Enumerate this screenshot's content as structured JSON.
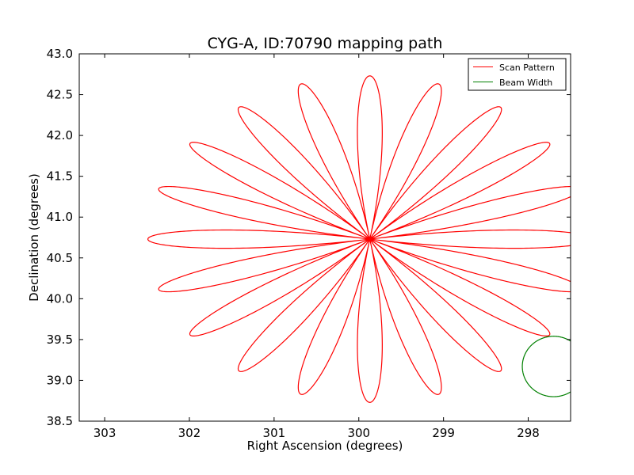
{
  "chart_data": {
    "type": "line",
    "title": "CYG-A, ID:70790 mapping path",
    "xlabel": "Right Ascension (degrees)",
    "ylabel": "Declination (degrees)",
    "xlim": [
      303.3,
      297.5
    ],
    "ylim": [
      38.5,
      43.0
    ],
    "x_axis_reversed": true,
    "grid": false,
    "legend_position": "top-right",
    "xticks": [
      303,
      302,
      301,
      300,
      299,
      298
    ],
    "xtick_labels": [
      "303",
      "302",
      "301",
      "300",
      "299",
      "298"
    ],
    "yticks": [
      38.5,
      39.0,
      39.5,
      40.0,
      40.5,
      41.0,
      41.5,
      42.0,
      42.5,
      43.0
    ],
    "ytick_labels": [
      "38.5",
      "39.0",
      "39.5",
      "40.0",
      "40.5",
      "41.0",
      "41.5",
      "42.0",
      "42.5",
      "43.0"
    ],
    "series": [
      {
        "name": "Scan Pattern",
        "color": "#ff0000",
        "pattern": "rose",
        "center": [
          299.87,
          40.73
        ],
        "petals": 20,
        "first_petal_angle_deg": 90,
        "radius_ra": 2.62,
        "radius_dec": 2.0
      },
      {
        "name": "Beam Width",
        "color": "#008000",
        "pattern": "circle",
        "center": [
          297.7,
          39.17
        ],
        "radius_dec": 0.37,
        "radius_ra": 0.37
      }
    ]
  }
}
